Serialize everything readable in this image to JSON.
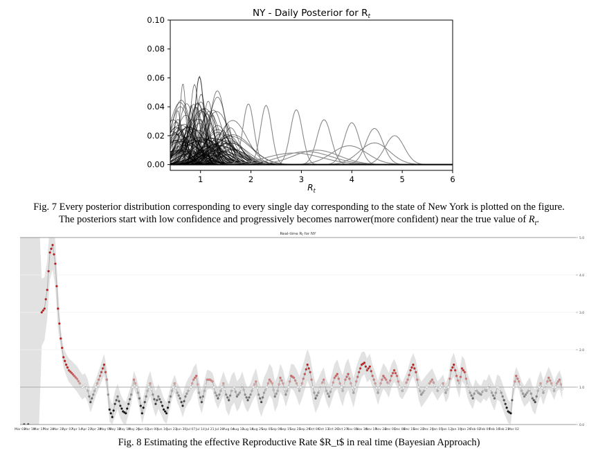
{
  "figure7": {
    "caption": [
      "Fig. 7 Every posterior distribution corresponding to every single day corresponding to the state of New York is plotted on the figure.",
      "The posteriors start with low confidence and progressively becomes narrower(more confident) near the true value of "
    ],
    "caption_symbol": "R",
    "caption_symbol_sub": "t",
    "caption_end": "."
  },
  "figure8": {
    "caption": "Fig. 8 Estimating the effective Reproductive Rate $R_t$ in real time (Bayesian Approach)"
  },
  "chart_data": [
    {
      "type": "line",
      "title": "NY - Daily Posterior for R",
      "title_sub": "t",
      "xlabel": "R",
      "xlabel_sub": "t",
      "xlim": [
        0.4,
        6
      ],
      "ylim": [
        -0.004,
        0.1
      ],
      "xticks": [
        1,
        2,
        3,
        4,
        5,
        6
      ],
      "yticks": [
        "0.00",
        "0.02",
        "0.04",
        "0.06",
        "0.08",
        "0.10"
      ],
      "ytick_values": [
        0,
        0.02,
        0.04,
        0.06,
        0.08,
        0.1
      ],
      "gray_series": [
        {
          "mean": 1.95,
          "sd": 0.11,
          "peak": 0.042
        },
        {
          "mean": 2.3,
          "sd": 0.11,
          "peak": 0.041
        },
        {
          "mean": 2.9,
          "sd": 0.12,
          "peak": 0.038
        },
        {
          "mean": 3.45,
          "sd": 0.14,
          "peak": 0.031
        },
        {
          "mean": 4.0,
          "sd": 0.15,
          "peak": 0.029
        },
        {
          "mean": 4.45,
          "sd": 0.17,
          "peak": 0.025
        },
        {
          "mean": 4.85,
          "sd": 0.19,
          "peak": 0.02
        },
        {
          "mean": 4.45,
          "sd": 0.3,
          "peak": 0.015
        },
        {
          "mean": 3.95,
          "sd": 0.35,
          "peak": 0.013
        },
        {
          "mean": 3.3,
          "sd": 0.45,
          "peak": 0.01
        },
        {
          "mean": 3.1,
          "sd": 0.5,
          "peak": 0.009
        },
        {
          "mean": 2.85,
          "sd": 0.55,
          "peak": 0.008
        }
      ]
    },
    {
      "type": "scatter",
      "title": "Real-time R",
      "title_sub": "t",
      "title_end": " for NY",
      "ylim": [
        0,
        5
      ],
      "yticks": [
        "0.0",
        "1.0",
        "2.0",
        "3.0",
        "4.0",
        "5.0"
      ],
      "ytick_values": [
        0,
        1,
        2,
        3,
        4,
        5
      ],
      "reference_line": 1.0,
      "x_tick_labels": [
        "Mar 03",
        "Mar 10",
        "Mar 17",
        "Mar 24",
        "Mar 31",
        "Apr 07",
        "Apr 14",
        "Apr 21",
        "Apr 28",
        "May 05",
        "May 12",
        "May 19",
        "May 26",
        "Jun 02",
        "Jun 09",
        "Jun 16",
        "Jun 23",
        "Jun 30",
        "Jul 07",
        "Jul 14",
        "Jul 21",
        "Jul 28",
        "Aug 04",
        "Aug 11",
        "Aug 18",
        "Aug 25",
        "Sep 01",
        "Sep 08",
        "Sep 15",
        "Sep 22",
        "Sep 29",
        "Oct 06",
        "Oct 13",
        "Oct 20",
        "Oct 27",
        "Nov 03",
        "Nov 10",
        "Nov 17",
        "Nov 24",
        "Dec 01",
        "Dec 08",
        "Dec 15",
        "Dec 22",
        "Dec 29",
        "Jan 05",
        "Jan 12",
        "Jan 19",
        "Jan 26",
        "Feb 02",
        "Feb 09",
        "Feb 16",
        "Feb 23",
        "Mar 02"
      ],
      "series_start_day": 16,
      "anchors": [
        [
          3,
          0
        ],
        [
          14,
          2.9
        ],
        [
          16,
          3.0
        ],
        [
          18,
          3.1
        ],
        [
          20,
          3.6
        ],
        [
          22,
          4.6
        ],
        [
          24,
          4.8
        ],
        [
          26,
          4.3
        ],
        [
          28,
          3.1
        ],
        [
          30,
          2.3
        ],
        [
          32,
          1.8
        ],
        [
          34,
          1.6
        ],
        [
          36,
          1.45
        ],
        [
          38,
          1.38
        ],
        [
          40,
          1.3
        ],
        [
          42,
          1.22
        ],
        [
          44,
          1.1
        ],
        [
          46,
          1.0
        ],
        [
          48,
          1.05
        ],
        [
          50,
          0.9
        ],
        [
          52,
          0.6
        ],
        [
          54,
          0.8
        ],
        [
          56,
          1.0
        ],
        [
          58,
          1.2
        ],
        [
          60,
          1.4
        ],
        [
          62,
          1.6
        ],
        [
          64,
          1.2
        ],
        [
          66,
          0.4
        ],
        [
          68,
          0.2
        ],
        [
          70,
          0.55
        ],
        [
          72,
          0.75
        ],
        [
          74,
          0.5
        ],
        [
          76,
          0.35
        ],
        [
          78,
          0.3
        ],
        [
          80,
          0.55
        ],
        [
          82,
          0.8
        ],
        [
          84,
          1.2
        ],
        [
          86,
          1.0
        ],
        [
          88,
          0.7
        ],
        [
          90,
          0.3
        ],
        [
          92,
          0.6
        ],
        [
          94,
          0.9
        ],
        [
          96,
          1.1
        ],
        [
          98,
          0.8
        ],
        [
          100,
          0.55
        ],
        [
          102,
          0.75
        ],
        [
          104,
          0.6
        ],
        [
          106,
          0.4
        ],
        [
          108,
          0.3
        ],
        [
          110,
          0.6
        ],
        [
          112,
          0.9
        ],
        [
          114,
          1.1
        ],
        [
          116,
          0.85
        ],
        [
          118,
          0.7
        ],
        [
          120,
          0.5
        ],
        [
          122,
          0.75
        ],
        [
          124,
          0.9
        ],
        [
          126,
          1.0
        ],
        [
          128,
          1.2
        ],
        [
          130,
          1.3
        ],
        [
          132,
          0.85
        ],
        [
          134,
          0.6
        ],
        [
          136,
          0.9
        ],
        [
          138,
          1.2
        ],
        [
          140,
          1.2
        ],
        [
          142,
          1.15
        ],
        [
          144,
          0.85
        ],
        [
          146,
          0.7
        ],
        [
          148,
          0.9
        ],
        [
          150,
          1.1
        ],
        [
          152,
          0.8
        ],
        [
          154,
          0.65
        ],
        [
          156,
          0.9
        ],
        [
          158,
          1.0
        ],
        [
          160,
          0.75
        ],
        [
          162,
          0.85
        ],
        [
          164,
          1.05
        ],
        [
          166,
          0.8
        ],
        [
          168,
          0.65
        ],
        [
          170,
          0.8
        ],
        [
          172,
          1.0
        ],
        [
          174,
          1.15
        ],
        [
          176,
          0.8
        ],
        [
          178,
          0.6
        ],
        [
          180,
          0.85
        ],
        [
          182,
          1.0
        ],
        [
          184,
          1.2
        ],
        [
          186,
          1.1
        ],
        [
          188,
          0.75
        ],
        [
          190,
          0.9
        ],
        [
          192,
          1.25
        ],
        [
          194,
          1.1
        ],
        [
          196,
          0.8
        ],
        [
          198,
          1.0
        ],
        [
          200,
          1.3
        ],
        [
          202,
          1.25
        ],
        [
          204,
          1.1
        ],
        [
          206,
          0.9
        ],
        [
          208,
          1.1
        ],
        [
          210,
          1.35
        ],
        [
          212,
          1.6
        ],
        [
          214,
          1.4
        ],
        [
          216,
          1.0
        ],
        [
          218,
          0.7
        ],
        [
          220,
          0.85
        ],
        [
          222,
          1.05
        ],
        [
          224,
          1.2
        ],
        [
          226,
          0.9
        ],
        [
          228,
          0.75
        ],
        [
          230,
          1.0
        ],
        [
          232,
          1.25
        ],
        [
          234,
          1.35
        ],
        [
          236,
          1.1
        ],
        [
          238,
          0.9
        ],
        [
          240,
          1.2
        ],
        [
          242,
          1.35
        ],
        [
          244,
          1.1
        ],
        [
          246,
          0.85
        ],
        [
          248,
          1.15
        ],
        [
          250,
          1.4
        ],
        [
          252,
          1.6
        ],
        [
          254,
          1.65
        ],
        [
          256,
          1.45
        ],
        [
          258,
          1.55
        ],
        [
          260,
          1.3
        ],
        [
          262,
          1.1
        ],
        [
          264,
          0.85
        ],
        [
          266,
          1.1
        ],
        [
          268,
          1.3
        ],
        [
          270,
          1.2
        ],
        [
          272,
          1.05
        ],
        [
          274,
          1.3
        ],
        [
          276,
          1.45
        ],
        [
          278,
          1.3
        ],
        [
          280,
          1.0
        ],
        [
          282,
          0.9
        ],
        [
          284,
          1.05
        ],
        [
          286,
          1.2
        ],
        [
          288,
          1.45
        ],
        [
          290,
          1.6
        ],
        [
          292,
          1.4
        ],
        [
          294,
          1.0
        ],
        [
          296,
          0.8
        ],
        [
          298,
          0.9
        ],
        [
          300,
          1.0
        ],
        [
          302,
          1.1
        ],
        [
          304,
          1.2
        ],
        [
          306,
          1.05
        ],
        [
          308,
          0.9
        ],
        [
          310,
          1.0
        ],
        [
          312,
          1.1
        ],
        [
          314,
          0.85
        ],
        [
          316,
          1.0
        ],
        [
          318,
          1.45
        ],
        [
          320,
          1.6
        ],
        [
          322,
          1.3
        ],
        [
          324,
          1.05
        ],
        [
          326,
          1.5
        ],
        [
          328,
          1.4
        ],
        [
          330,
          1.05
        ],
        [
          332,
          0.85
        ],
        [
          334,
          0.7
        ],
        [
          336,
          0.95
        ],
        [
          338,
          0.85
        ],
        [
          340,
          0.8
        ],
        [
          342,
          0.95
        ],
        [
          344,
          0.9
        ],
        [
          346,
          1.05
        ],
        [
          348,
          0.85
        ],
        [
          350,
          0.7
        ],
        [
          352,
          1.0
        ],
        [
          354,
          0.95
        ],
        [
          356,
          0.75
        ],
        [
          358,
          0.55
        ],
        [
          360,
          0.35
        ],
        [
          362,
          0.3
        ],
        [
          364,
          1.0
        ],
        [
          366,
          1.3
        ],
        [
          368,
          1.15
        ],
        [
          370,
          0.9
        ],
        [
          372,
          0.75
        ],
        [
          374,
          0.85
        ],
        [
          376,
          0.95
        ],
        [
          378,
          0.7
        ],
        [
          380,
          0.6
        ],
        [
          382,
          0.9
        ],
        [
          384,
          1.1
        ],
        [
          386,
          0.85
        ],
        [
          388,
          1.05
        ],
        [
          390,
          1.25
        ],
        [
          392,
          1.1
        ],
        [
          394,
          0.9
        ],
        [
          396,
          1.1
        ],
        [
          398,
          1.2
        ],
        [
          400,
          0.95
        ]
      ]
    }
  ]
}
